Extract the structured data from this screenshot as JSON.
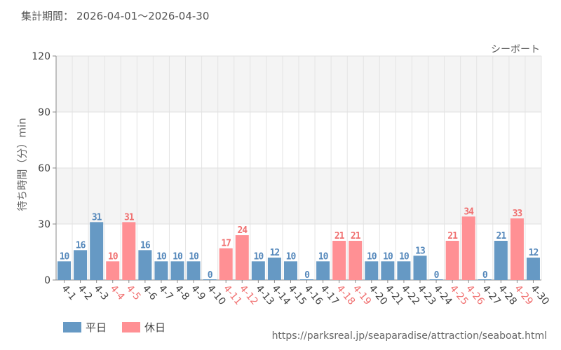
{
  "header": {
    "period_label": "集計期間：",
    "period_value": "2026-04-01～2026-04-30"
  },
  "footer": {
    "source": "https://parksreal.jp/seaparadise/attraction/seaboat.html"
  },
  "colors": {
    "weekday": "#6699c4",
    "holiday": "#ff9094",
    "weekday_text": "#5588bb",
    "holiday_text": "#f07070"
  },
  "chart_data": {
    "type": "bar",
    "title": "シーボート",
    "ylabel": "待ち時間（分）min",
    "xlabel": "",
    "ylim": [
      0,
      120
    ],
    "yticks": [
      0,
      30,
      60,
      90,
      120
    ],
    "grid": true,
    "legend_position": "bottom-left",
    "categories": [
      "4-1",
      "4-2",
      "4-3",
      "4-4",
      "4-5",
      "4-6",
      "4-7",
      "4-8",
      "4-9",
      "4-10",
      "4-11",
      "4-12",
      "4-13",
      "4-14",
      "4-15",
      "4-16",
      "4-17",
      "4-18",
      "4-19",
      "4-20",
      "4-21",
      "4-22",
      "4-23",
      "4-24",
      "4-25",
      "4-26",
      "4-27",
      "4-28",
      "4-29",
      "4-30"
    ],
    "values": [
      10,
      16,
      31,
      10,
      31,
      16,
      10,
      10,
      10,
      0,
      17,
      24,
      10,
      12,
      10,
      0,
      10,
      21,
      21,
      10,
      10,
      10,
      13,
      0,
      21,
      34,
      0,
      21,
      33,
      12
    ],
    "day_type": [
      "weekday",
      "weekday",
      "weekday",
      "holiday",
      "holiday",
      "weekday",
      "weekday",
      "weekday",
      "weekday",
      "weekday",
      "holiday",
      "holiday",
      "weekday",
      "weekday",
      "weekday",
      "weekday",
      "weekday",
      "holiday",
      "holiday",
      "weekday",
      "weekday",
      "weekday",
      "weekday",
      "weekday",
      "holiday",
      "holiday",
      "weekday",
      "weekday",
      "holiday",
      "weekday"
    ],
    "legend": [
      {
        "key": "weekday",
        "label": "平日"
      },
      {
        "key": "holiday",
        "label": "休日"
      }
    ]
  }
}
